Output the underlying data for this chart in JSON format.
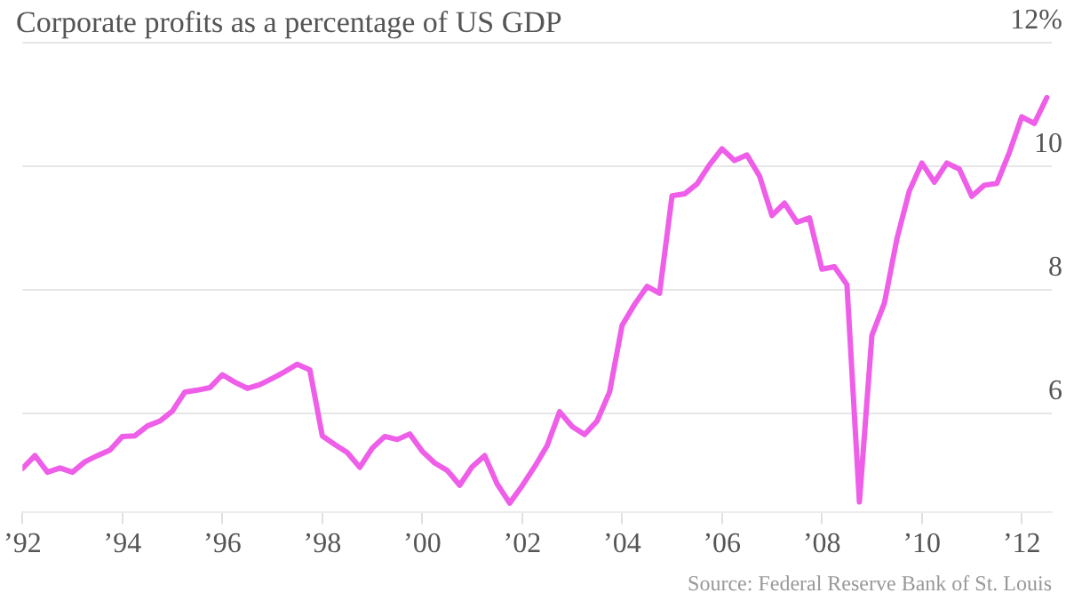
{
  "chart_data": {
    "type": "line",
    "title": "Corporate profits as a percentage of US GDP",
    "annotations": [
      "Source: Federal Reserve Bank of St. Louis"
    ],
    "x": [
      1992,
      1992.25,
      1992.5,
      1992.75,
      1993,
      1993.25,
      1993.5,
      1993.75,
      1994,
      1994.25,
      1994.5,
      1994.75,
      1995,
      1995.25,
      1995.5,
      1995.75,
      1996,
      1996.25,
      1996.5,
      1996.75,
      1997,
      1997.25,
      1997.5,
      1997.75,
      1998,
      1998.25,
      1998.5,
      1998.75,
      1999,
      1999.25,
      1999.5,
      1999.75,
      2000,
      2000.25,
      2000.5,
      2000.75,
      2001,
      2001.25,
      2001.5,
      2001.75,
      2002,
      2002.25,
      2002.5,
      2002.75,
      2003,
      2003.25,
      2003.5,
      2003.75,
      2004,
      2004.25,
      2004.5,
      2004.75,
      2005,
      2005.25,
      2005.5,
      2005.75,
      2006,
      2006.25,
      2006.5,
      2006.75,
      2007,
      2007.25,
      2007.5,
      2007.75,
      2008,
      2008.25,
      2008.5,
      2008.75,
      2009,
      2009.25,
      2009.5,
      2009.75,
      2010,
      2010.25,
      2010.5,
      2010.75,
      2011,
      2011.25,
      2011.5,
      2011.75,
      2012,
      2012.25,
      2012.5
    ],
    "values": [
      5.1,
      5.31,
      5.04,
      5.11,
      5.04,
      5.21,
      5.31,
      5.4,
      5.62,
      5.63,
      5.79,
      5.87,
      6.03,
      6.34,
      6.37,
      6.41,
      6.62,
      6.5,
      6.4,
      6.46,
      6.56,
      6.67,
      6.79,
      6.7,
      5.63,
      5.49,
      5.36,
      5.12,
      5.43,
      5.62,
      5.57,
      5.66,
      5.38,
      5.19,
      5.07,
      4.83,
      5.13,
      5.31,
      4.85,
      4.54,
      4.82,
      5.13,
      5.47,
      6.02,
      5.78,
      5.65,
      5.87,
      6.34,
      7.42,
      7.76,
      8.05,
      7.94,
      9.52,
      9.55,
      9.71,
      10.02,
      10.28,
      10.09,
      10.18,
      9.84,
      9.2,
      9.4,
      9.09,
      9.16,
      8.33,
      8.37,
      8.08,
      4.56,
      7.26,
      7.78,
      8.82,
      9.6,
      10.05,
      9.74,
      10.05,
      9.95,
      9.51,
      9.69,
      9.72,
      10.22,
      10.8,
      10.69,
      11.11
    ],
    "color": "#ee5ee8",
    "xlim": [
      1992,
      2012.6
    ],
    "ylim": [
      4.4,
      12
    ],
    "xticks": [
      {
        "value": 1992,
        "label": "’92"
      },
      {
        "value": 1994,
        "label": "’94"
      },
      {
        "value": 1996,
        "label": "’96"
      },
      {
        "value": 1998,
        "label": "’98"
      },
      {
        "value": 2000,
        "label": "’00"
      },
      {
        "value": 2002,
        "label": "’02"
      },
      {
        "value": 2004,
        "label": "’04"
      },
      {
        "value": 2006,
        "label": "’06"
      },
      {
        "value": 2008,
        "label": "’08"
      },
      {
        "value": 2010,
        "label": "’10"
      },
      {
        "value": 2012,
        "label": "’12"
      }
    ],
    "yticks": [
      6,
      8,
      10,
      {
        "value": 12,
        "label": "12%"
      }
    ],
    "grid": "y"
  }
}
